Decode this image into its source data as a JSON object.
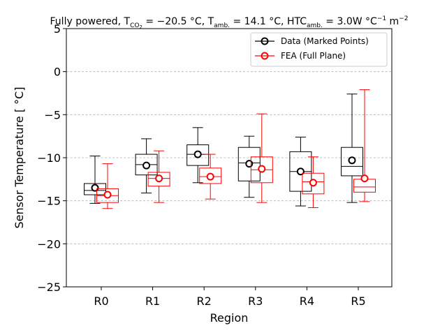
{
  "chart_data": {
    "type": "box",
    "title": {
      "main": "Fully powered, T",
      "sub1": "CO",
      "sub1b": "2",
      "part2": " = −20.5 °C, T",
      "sub2": "amb.",
      "part3": " = 14.1 °C, HTC",
      "sub3": "amb.",
      "part4": " = 3.0W °C",
      "sup4": "−1",
      "part5": " m",
      "sup5": "−2"
    },
    "xlabel": "Region",
    "ylabel": "Sensor Temperature [ °C]",
    "ylim": [
      -25,
      5
    ],
    "yticks": [
      {
        "value": 5,
        "label": "5"
      },
      {
        "value": 0,
        "label": "0"
      },
      {
        "value": -5,
        "label": "−5"
      },
      {
        "value": -10,
        "label": "−10"
      },
      {
        "value": -15,
        "label": "−15"
      },
      {
        "value": -20,
        "label": "−20"
      },
      {
        "value": -25,
        "label": "−25"
      }
    ],
    "categories": [
      "R0",
      "R1",
      "R2",
      "R3",
      "R4",
      "R5"
    ],
    "grid": "y-dashed",
    "legend_position": "top-right",
    "series": [
      {
        "name": "Data (Marked Points)",
        "color": "#000000",
        "boxes": [
          {
            "whisker_low": -15.3,
            "q1": -14.3,
            "median": -13.8,
            "q3": -13.0,
            "whisker_high": -9.8,
            "mean": -13.5
          },
          {
            "whisker_low": -14.1,
            "q1": -12.0,
            "median": -10.8,
            "q3": -9.6,
            "whisker_high": -7.8,
            "mean": -10.9
          },
          {
            "whisker_low": -12.9,
            "q1": -10.9,
            "median": -9.6,
            "q3": -8.5,
            "whisker_high": -6.5,
            "mean": -9.6
          },
          {
            "whisker_low": -14.6,
            "q1": -12.7,
            "median": -10.6,
            "q3": -8.8,
            "whisker_high": -7.5,
            "mean": -10.7
          },
          {
            "whisker_low": -15.6,
            "q1": -13.9,
            "median": -11.6,
            "q3": -9.3,
            "whisker_high": -7.6,
            "mean": -11.6
          },
          {
            "whisker_low": -15.2,
            "q1": -12.1,
            "median": -11.0,
            "q3": -8.8,
            "whisker_high": -2.6,
            "mean": -10.3
          }
        ]
      },
      {
        "name": "FEA (Full Plane)",
        "color": "#ff0000",
        "boxes": [
          {
            "whisker_low": -15.9,
            "q1": -15.2,
            "median": -14.4,
            "q3": -13.6,
            "whisker_high": -10.7,
            "mean": -14.3
          },
          {
            "whisker_low": -15.2,
            "q1": -13.3,
            "median": -12.4,
            "q3": -11.7,
            "whisker_high": -9.2,
            "mean": -12.4
          },
          {
            "whisker_low": -14.8,
            "q1": -13.0,
            "median": -12.2,
            "q3": -11.2,
            "whisker_high": -9.6,
            "mean": -12.2
          },
          {
            "whisker_low": -15.2,
            "q1": -12.9,
            "median": -11.4,
            "q3": -9.9,
            "whisker_high": -4.9,
            "mean": -11.3
          },
          {
            "whisker_low": -15.8,
            "q1": -14.2,
            "median": -12.8,
            "q3": -11.8,
            "whisker_high": -9.9,
            "mean": -12.9
          },
          {
            "whisker_low": -15.1,
            "q1": -14.0,
            "median": -13.4,
            "q3": -12.5,
            "whisker_high": -2.1,
            "mean": -12.4
          }
        ]
      }
    ]
  }
}
